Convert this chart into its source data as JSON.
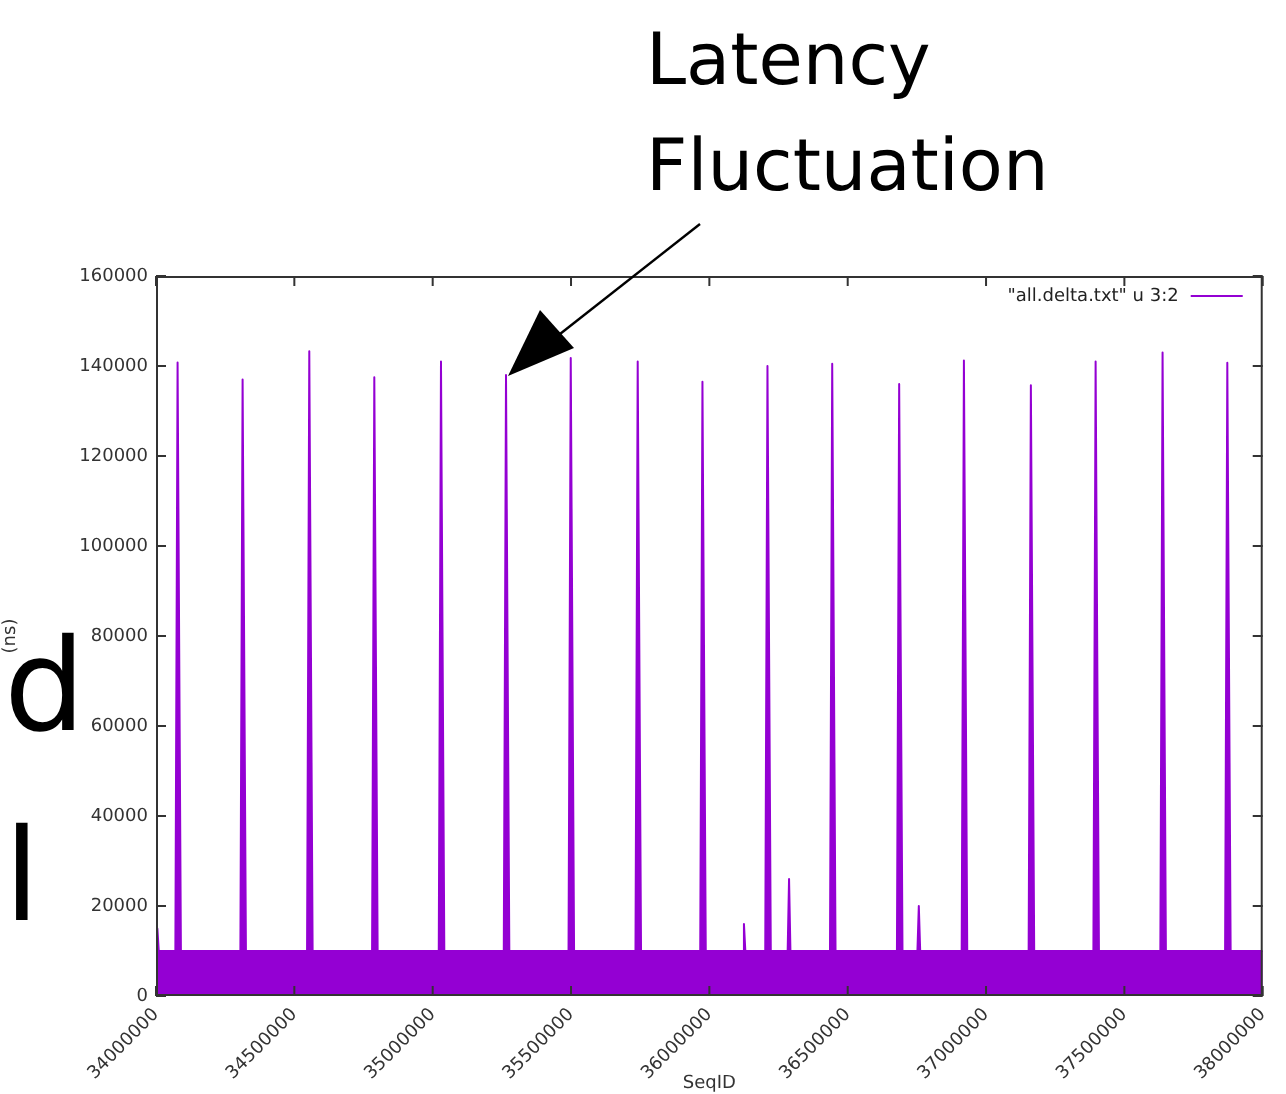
{
  "chart_data": {
    "type": "area",
    "xlabel": "SeqID",
    "ylabel": "(ns)",
    "xlim": [
      34000000,
      38000000
    ],
    "xticks": [
      34000000,
      34500000,
      35000000,
      35500000,
      36000000,
      36500000,
      37000000,
      37500000,
      38000000
    ],
    "ylim": [
      0,
      160000
    ],
    "yticks": [
      0,
      20000,
      40000,
      60000,
      80000,
      100000,
      120000,
      140000,
      160000
    ],
    "grid": false,
    "legend": "top right",
    "marker": "none",
    "annotations": [
      "Latency Fluctuation",
      "d",
      "l"
    ],
    "series": [
      {
        "name": "\"all.delta.txt\" u 3:2",
        "color": "#9400d3",
        "x": [
          34000000,
          34005000,
          34010000,
          34070000,
          34078000,
          34090000,
          34200000,
          34305000,
          34313000,
          34325000,
          34430000,
          34546000,
          34554000,
          34566000,
          34670000,
          34781000,
          34789000,
          34801000,
          34910000,
          35022000,
          35030000,
          35042000,
          35150000,
          35257000,
          35265000,
          35277000,
          35380000,
          35491000,
          35499000,
          35511000,
          35620000,
          35733000,
          35741000,
          35753000,
          35860000,
          35967000,
          35975000,
          35987000,
          36120000,
          36125000,
          36130000,
          36202000,
          36210000,
          36222000,
          36283000,
          36288000,
          36293000,
          36436000,
          36444000,
          36456000,
          36560000,
          36678000,
          36686000,
          36698000,
          36752000,
          36757000,
          36762000,
          36912000,
          36920000,
          36932000,
          37040000,
          37154000,
          37162000,
          37174000,
          37280000,
          37388000,
          37396000,
          37408000,
          37520000,
          37630000,
          37638000,
          37650000,
          37750000,
          37864000,
          37872000,
          37884000,
          38000000
        ],
        "values": [
          10000,
          15000,
          10000,
          10000,
          140800,
          10000,
          10000,
          10000,
          137000,
          10000,
          10000,
          10000,
          143300,
          10000,
          10000,
          10000,
          137500,
          10000,
          10000,
          10000,
          141000,
          10000,
          10000,
          10000,
          138000,
          10000,
          10000,
          10000,
          141800,
          10000,
          10000,
          10000,
          141000,
          10000,
          10000,
          10000,
          136500,
          10000,
          10000,
          16000,
          10000,
          10000,
          140000,
          10000,
          10000,
          26000,
          10000,
          10000,
          140500,
          10000,
          10000,
          10000,
          136000,
          10000,
          10000,
          20000,
          10000,
          10000,
          141200,
          10000,
          10000,
          10000,
          135700,
          10000,
          10000,
          10000,
          141000,
          10000,
          10000,
          10000,
          143000,
          10000,
          10000,
          10000,
          140700,
          10000,
          10000
        ]
      }
    ]
  }
}
